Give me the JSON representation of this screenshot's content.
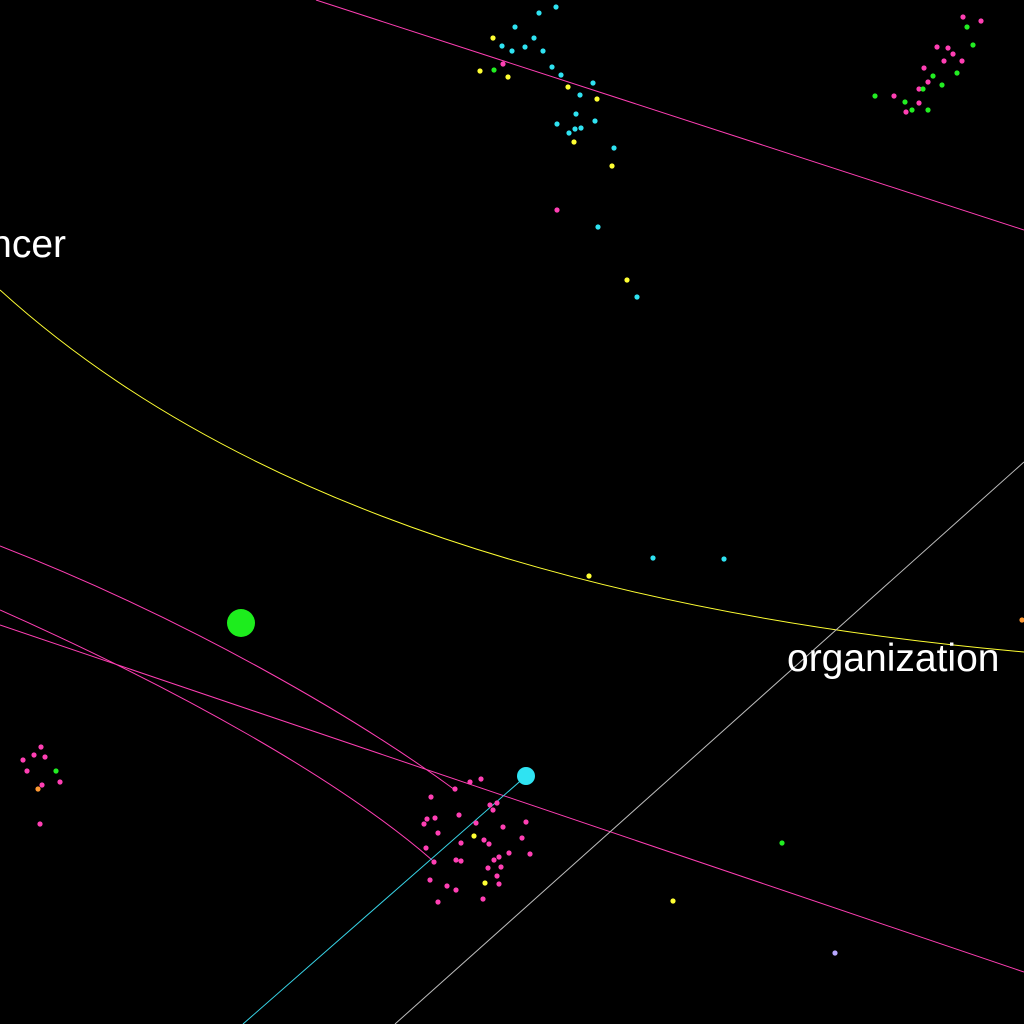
{
  "graph": {
    "background": "#000000",
    "labels": {
      "left": "ncer",
      "right": "organization"
    },
    "colors": {
      "pink": "#ff3fb4",
      "cyan": "#2fe3f2",
      "yellow": "#ffff33",
      "green": "#22ee22",
      "orange": "#ff9933",
      "lavender": "#b8a8ff",
      "grey_edge": "#bdbdbd",
      "yellow_edge": "#ffff33",
      "pink_edge": "#ff3fb4",
      "cyan_edge": "#38d5e8",
      "hub_green": "#1ded1d",
      "hub_cyan": "#2fe3f2"
    }
  }
}
